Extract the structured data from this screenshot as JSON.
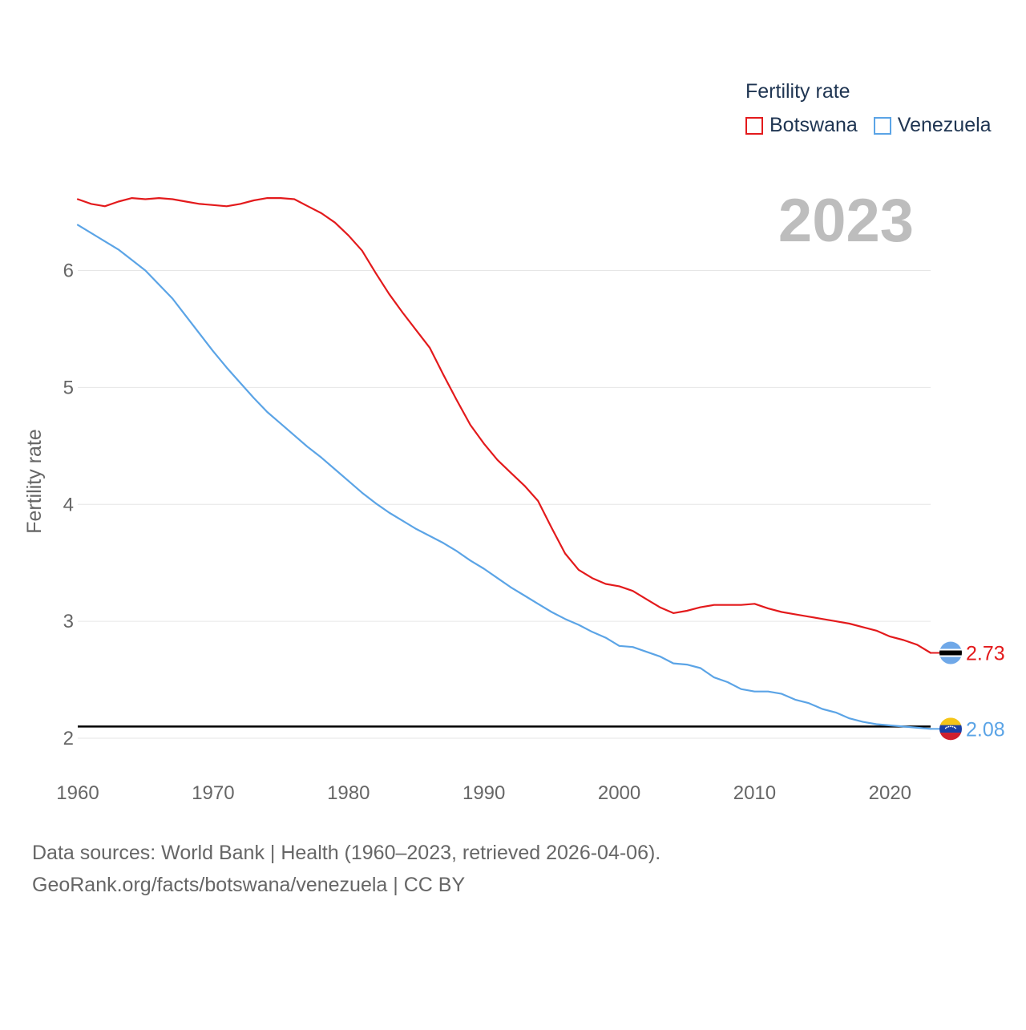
{
  "legend": {
    "title": "Fertility rate",
    "items": [
      {
        "label": "Botswana",
        "color": "#e31a1c"
      },
      {
        "label": "Venezuela",
        "color": "#5ba4e6"
      }
    ]
  },
  "year_badge": "2023",
  "footer": {
    "line1": "Data sources: World Bank | Health (1960–2023, retrieved 2026-04-06).",
    "line2": "GeoRank.org/facts/botswana/venezuela | CC BY"
  },
  "chart_data": {
    "type": "line",
    "title": "Fertility rate",
    "xlabel": "",
    "ylabel": "Fertility rate",
    "xlim": [
      1960,
      2023
    ],
    "ylim": [
      2,
      6.6
    ],
    "x_ticks": [
      1960,
      1970,
      1980,
      1990,
      2000,
      2010,
      2020
    ],
    "y_ticks": [
      2,
      3,
      4,
      5,
      6
    ],
    "grid": true,
    "reference_line": {
      "y": 2.1
    },
    "x": [
      1960,
      1961,
      1962,
      1963,
      1964,
      1965,
      1966,
      1967,
      1968,
      1969,
      1970,
      1971,
      1972,
      1973,
      1974,
      1975,
      1976,
      1977,
      1978,
      1979,
      1980,
      1981,
      1982,
      1983,
      1984,
      1985,
      1986,
      1987,
      1988,
      1989,
      1990,
      1991,
      1992,
      1993,
      1994,
      1995,
      1996,
      1997,
      1998,
      1999,
      2000,
      2001,
      2002,
      2003,
      2004,
      2005,
      2006,
      2007,
      2008,
      2009,
      2010,
      2011,
      2012,
      2013,
      2014,
      2015,
      2016,
      2017,
      2018,
      2019,
      2020,
      2021,
      2022,
      2023
    ],
    "series": [
      {
        "name": "Botswana",
        "color": "#e31a1c",
        "end_label": "2.73",
        "flag": "botswana",
        "values": [
          6.61,
          6.57,
          6.55,
          6.59,
          6.62,
          6.61,
          6.62,
          6.61,
          6.59,
          6.57,
          6.56,
          6.55,
          6.57,
          6.6,
          6.62,
          6.62,
          6.61,
          6.55,
          6.49,
          6.41,
          6.3,
          6.17,
          5.98,
          5.8,
          5.64,
          5.49,
          5.34,
          5.11,
          4.89,
          4.68,
          4.52,
          4.38,
          4.27,
          4.16,
          4.03,
          3.8,
          3.58,
          3.44,
          3.37,
          3.32,
          3.3,
          3.26,
          3.19,
          3.12,
          3.07,
          3.09,
          3.12,
          3.14,
          3.14,
          3.14,
          3.15,
          3.11,
          3.08,
          3.06,
          3.04,
          3.02,
          3.0,
          2.98,
          2.95,
          2.92,
          2.87,
          2.84,
          2.8,
          2.73
        ]
      },
      {
        "name": "Venezuela",
        "color": "#5ba4e6",
        "end_label": "2.08",
        "flag": "venezuela",
        "values": [
          6.39,
          6.32,
          6.25,
          6.18,
          6.09,
          6.0,
          5.88,
          5.76,
          5.61,
          5.46,
          5.31,
          5.17,
          5.04,
          4.91,
          4.79,
          4.69,
          4.59,
          4.49,
          4.4,
          4.3,
          4.2,
          4.1,
          4.01,
          3.93,
          3.86,
          3.79,
          3.73,
          3.67,
          3.6,
          3.52,
          3.45,
          3.37,
          3.29,
          3.22,
          3.15,
          3.08,
          3.02,
          2.97,
          2.91,
          2.86,
          2.79,
          2.78,
          2.74,
          2.7,
          2.64,
          2.63,
          2.6,
          2.52,
          2.48,
          2.42,
          2.4,
          2.4,
          2.38,
          2.33,
          2.3,
          2.25,
          2.22,
          2.17,
          2.14,
          2.12,
          2.11,
          2.1,
          2.09,
          2.08
        ]
      }
    ]
  }
}
